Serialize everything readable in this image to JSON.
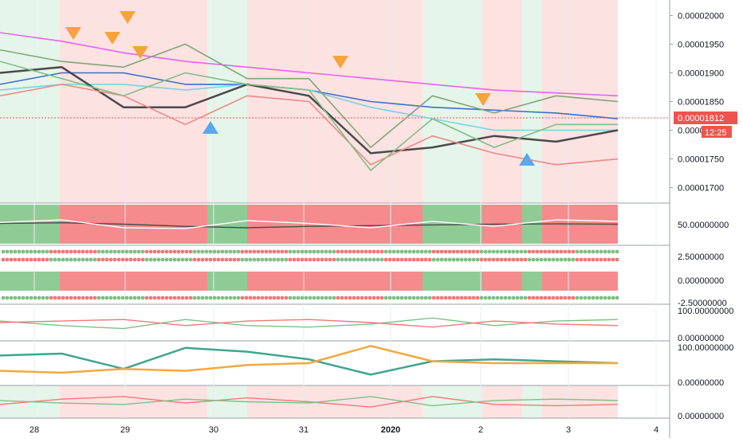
{
  "colors": {
    "bg_green": "#e5f5ea",
    "bg_red": "#fde2e2",
    "green": "#7fbf86",
    "red": "#f2787a",
    "band_green": "#8fcb95",
    "band_red": "#f58b8d",
    "magenta": "#e566e8",
    "blue": "#3c6fc4",
    "cyan": "#7ad3df",
    "olive": "#7fa676",
    "salmon": "#ec8a86",
    "dark": "#4a4a4a",
    "orange": "#f4a83e",
    "teal": "#41a58f",
    "marker_orange": "#f5a43a",
    "marker_blue": "#5aa7ea",
    "price_badge": "#ef5350",
    "grid": "#e8ecf0",
    "axis_text": "#131722"
  },
  "x_axis": {
    "labels": [
      "28",
      "29",
      "30",
      "31",
      "2020",
      "2",
      "3",
      "4"
    ]
  },
  "price_badge": {
    "value": "0.00001812",
    "countdown": "12:25"
  },
  "chart_data": [
    {
      "pane": "price",
      "type": "line",
      "y_tick_labels": [
        "0.00002000",
        "0.00001950",
        "0.00001900",
        "0.00001850",
        "0.00001800",
        "0.00001750",
        "0.00001700"
      ],
      "ylim": [
        1.68e-05,
        2.02e-05
      ],
      "x_labels": [
        "28",
        "29",
        "30",
        "31",
        "2020",
        "2",
        "3",
        "4"
      ],
      "series": [
        {
          "color": "magenta",
          "values": [
            1.97e-05,
            1.955e-05,
            1.935e-05,
            1.92e-05,
            1.91e-05,
            1.9e-05,
            1.89e-05,
            1.88e-05,
            1.87e-05,
            1.865e-05,
            1.86e-05
          ]
        },
        {
          "color": "blue",
          "values": [
            1.88e-05,
            1.9e-05,
            1.9e-05,
            1.88e-05,
            1.88e-05,
            1.87e-05,
            1.85e-05,
            1.84e-05,
            1.835e-05,
            1.83e-05,
            1.82e-05
          ]
        },
        {
          "color": "cyan",
          "values": [
            1.87e-05,
            1.88e-05,
            1.88e-05,
            1.87e-05,
            1.88e-05,
            1.87e-05,
            1.84e-05,
            1.82e-05,
            1.8e-05,
            1.8e-05,
            1.8e-05
          ]
        },
        {
          "color": "dark",
          "values": [
            1.9e-05,
            1.91e-05,
            1.84e-05,
            1.84e-05,
            1.88e-05,
            1.86e-05,
            1.76e-05,
            1.77e-05,
            1.79e-05,
            1.78e-05,
            1.8e-05
          ]
        },
        {
          "color": "olive",
          "values": [
            1.94e-05,
            1.92e-05,
            1.91e-05,
            1.95e-05,
            1.89e-05,
            1.89e-05,
            1.77e-05,
            1.86e-05,
            1.83e-05,
            1.86e-05,
            1.85e-05
          ]
        },
        {
          "color": "salmon",
          "values": [
            1.86e-05,
            1.88e-05,
            1.86e-05,
            1.81e-05,
            1.86e-05,
            1.85e-05,
            1.74e-05,
            1.79e-05,
            1.76e-05,
            1.74e-05,
            1.75e-05
          ]
        },
        {
          "color": "green",
          "name": "",
          "values": [
            1.92e-05,
            1.89e-05,
            1.86e-05,
            1.9e-05,
            1.88e-05,
            1.87e-05,
            1.73e-05,
            1.82e-05,
            1.77e-05,
            1.81e-05,
            1.81e-05
          ]
        }
      ]
    },
    {
      "pane": "oscillator-1",
      "type": "area",
      "y_tick_labels": [
        "50.00000000"
      ],
      "series": [
        {
          "color": "dark",
          "values": [
            52,
            54,
            50,
            44,
            40,
            44,
            46,
            48,
            50,
            51,
            50
          ]
        },
        {
          "color": "white",
          "values": [
            55,
            62,
            40,
            38,
            60,
            52,
            40,
            58,
            44,
            62,
            58
          ]
        }
      ]
    },
    {
      "pane": "oscillator-2",
      "type": "heatmap",
      "y_tick_labels": [
        "2.50000000",
        "0.00000000",
        "-2.50000000"
      ]
    },
    {
      "pane": "oscillator-3",
      "type": "line",
      "y_tick_labels": [
        "100.00000000",
        "0.00000000"
      ],
      "series": [
        {
          "color": "green",
          "values": [
            55,
            40,
            30,
            60,
            40,
            35,
            45,
            65,
            40,
            55,
            60
          ]
        },
        {
          "color": "red",
          "values": [
            50,
            55,
            60,
            40,
            55,
            60,
            50,
            35,
            55,
            45,
            40
          ]
        }
      ]
    },
    {
      "pane": "oscillator-4",
      "type": "line",
      "y_tick_labels": [
        "100.00000000",
        "0.00000000"
      ],
      "series": [
        {
          "color": "teal",
          "values": [
            70,
            75,
            35,
            90,
            80,
            60,
            20,
            55,
            60,
            55,
            50
          ]
        },
        {
          "color": "orange",
          "values": [
            30,
            25,
            35,
            30,
            45,
            50,
            95,
            55,
            50,
            50,
            50
          ]
        }
      ]
    },
    {
      "pane": "oscillator-5",
      "type": "line",
      "y_tick_labels": [
        "0.00000000"
      ],
      "series": [
        {
          "color": "red",
          "values": [
            40,
            60,
            70,
            45,
            65,
            50,
            30,
            70,
            40,
            35,
            40
          ]
        },
        {
          "color": "green",
          "values": [
            55,
            45,
            40,
            60,
            50,
            45,
            70,
            35,
            55,
            60,
            55
          ]
        }
      ]
    }
  ]
}
